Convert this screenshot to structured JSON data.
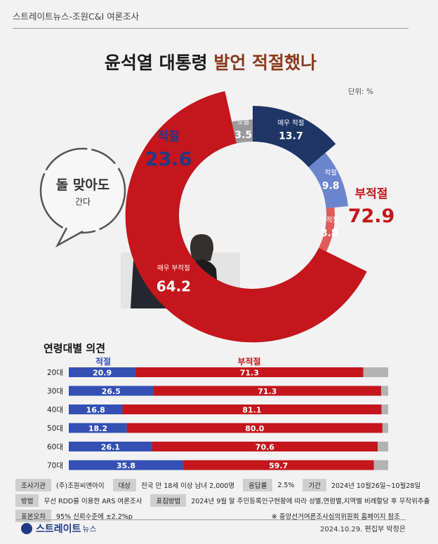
{
  "header": "스트레이트뉴스-조원C&I 여론조사",
  "title_main": "윤석열 대통령 ",
  "title_accent": "발언 적절했나",
  "unit": "단위: %",
  "bubble": {
    "line1": "돌 맞아도",
    "line2": "간다"
  },
  "summary": {
    "appropriate": {
      "label": "적절",
      "value": "23.6",
      "color": "#1f3a86"
    },
    "inappropriate": {
      "label": "부적절",
      "value": "72.9",
      "color": "#c4161c"
    }
  },
  "chart_data": [
    {
      "type": "pie",
      "categories": [
        "매우 적절",
        "적절",
        "부적절",
        "매우 부적절",
        "모름"
      ],
      "values": [
        13.7,
        9.8,
        8.8,
        64.2,
        3.5
      ],
      "colors": [
        "#1e3565",
        "#6c85cf",
        "#e05b5b",
        "#c4161c",
        "#9a9a9a"
      ],
      "value_labels": [
        "13.7",
        "9.8",
        "8.8",
        "64.2",
        "3.5"
      ]
    },
    {
      "type": "bar",
      "stacked": true,
      "orientation": "horizontal",
      "title": "연령대별 의견",
      "categories": [
        "20대",
        "30대",
        "40대",
        "50대",
        "60대",
        "70대"
      ],
      "series": [
        {
          "name": "적절",
          "values": [
            20.9,
            26.5,
            16.8,
            18.2,
            26.1,
            35.8
          ],
          "labels": [
            "20.9",
            "26.5",
            "16.8",
            "18.2",
            "26.1",
            "35.8"
          ],
          "color": "#3450b5"
        },
        {
          "name": "부적절",
          "values": [
            71.3,
            71.3,
            81.1,
            80.0,
            70.6,
            59.7
          ],
          "labels": [
            "71.3",
            "71.3",
            "81.1",
            "80.0",
            "70.6",
            "59.7"
          ],
          "color": "#c4161c"
        }
      ],
      "remainder_color": "#b3b3b3",
      "xlim": [
        0,
        100
      ]
    }
  ],
  "footer": {
    "row1": [
      {
        "tag": "조사기관",
        "value": "(주)조원씨앤아이"
      },
      {
        "tag": "대상",
        "value": "전국 만 18세 이상 남녀 2,000명"
      },
      {
        "tag": "응답률",
        "value": "2.5%"
      },
      {
        "tag": "기간",
        "value": "2024년 10월26일~10월28일"
      }
    ],
    "row2": [
      {
        "tag": "방법",
        "value": "무선 RDD를 이용한 ARS 여론조사"
      },
      {
        "tag": "표집방법",
        "value": "2024년 9월 말 주민등록인구현황에 따라 성별,연령별,지역별 비례할당 후 무작위추출"
      }
    ],
    "row3": [
      {
        "tag": "표본오차",
        "value": "95% 신뢰수준에 ±2.2%p"
      }
    ],
    "note": "※ 중앙선거여론조사심의위원회 홈페이지 참조"
  },
  "logo": {
    "main": "스트레이트",
    "sub": "뉴스"
  },
  "credit": "2024.10.29. 편집부 박정은"
}
